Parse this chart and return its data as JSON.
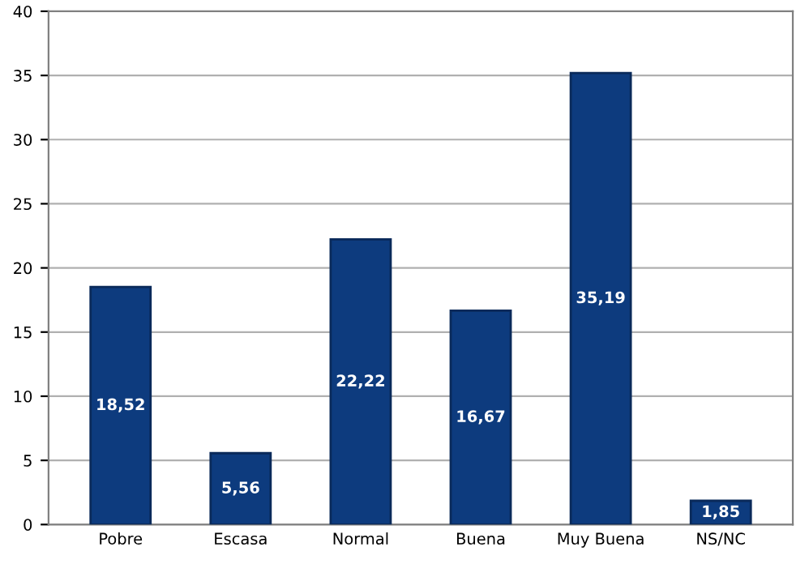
{
  "chart_data": {
    "type": "bar",
    "categories": [
      "Pobre",
      "Escasa",
      "Normal",
      "Buena",
      "Muy Buena",
      "NS/NC"
    ],
    "values": [
      18.52,
      5.56,
      22.22,
      16.67,
      35.19,
      1.85
    ],
    "value_labels": [
      "18,52",
      "5,56",
      "22,22",
      "16,67",
      "35,19",
      "1,85"
    ],
    "color": "#0d3b7e",
    "ylim": [
      0,
      40
    ],
    "yticks": [
      0,
      5,
      10,
      15,
      20,
      25,
      30,
      35,
      40
    ],
    "grid": "y",
    "legend": false
  }
}
